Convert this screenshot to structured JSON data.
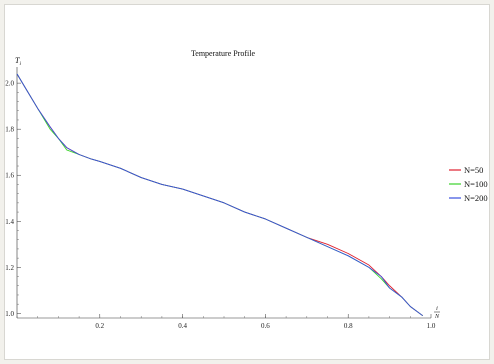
{
  "chart_data": {
    "type": "line",
    "title": "Temperature Profile",
    "ylabel": "T_i",
    "xlabel": "i/N",
    "xlim": [
      0,
      1.0
    ],
    "ylim": [
      0.98,
      2.07
    ],
    "xticks": [
      0.2,
      0.4,
      0.6,
      0.8,
      1.0
    ],
    "xtick_labels": [
      "0.2",
      "0.4",
      "0.6",
      "0.8",
      "1.0"
    ],
    "yticks": [
      1.0,
      1.2,
      1.4,
      1.6,
      1.8,
      2.0
    ],
    "ytick_labels": [
      "1.0",
      "1.2",
      "1.4",
      "1.6",
      "1.8",
      "2.0"
    ],
    "legend_position": "right",
    "x": [
      0.0,
      0.02,
      0.05,
      0.08,
      0.1,
      0.12,
      0.15,
      0.18,
      0.2,
      0.25,
      0.3,
      0.35,
      0.4,
      0.45,
      0.5,
      0.55,
      0.6,
      0.65,
      0.7,
      0.75,
      0.8,
      0.85,
      0.88,
      0.9,
      0.93,
      0.95,
      0.98
    ],
    "series": [
      {
        "name": "N=50",
        "color": "#e0202e",
        "values": [
          2.04,
          1.98,
          1.89,
          1.81,
          1.76,
          1.72,
          1.69,
          1.67,
          1.66,
          1.63,
          1.59,
          1.56,
          1.54,
          1.51,
          1.48,
          1.44,
          1.41,
          1.37,
          1.33,
          1.3,
          1.26,
          1.21,
          1.16,
          1.12,
          1.07,
          1.03,
          0.99
        ]
      },
      {
        "name": "N=100",
        "color": "#3bd12b",
        "values": [
          2.04,
          1.98,
          1.89,
          1.8,
          1.76,
          1.71,
          1.69,
          1.67,
          1.66,
          1.63,
          1.59,
          1.56,
          1.54,
          1.51,
          1.48,
          1.44,
          1.41,
          1.37,
          1.33,
          1.29,
          1.25,
          1.2,
          1.15,
          1.11,
          1.07,
          1.03,
          0.99
        ]
      },
      {
        "name": "N=200",
        "color": "#3a4fe0",
        "values": [
          2.04,
          1.98,
          1.89,
          1.81,
          1.76,
          1.72,
          1.69,
          1.67,
          1.66,
          1.63,
          1.59,
          1.56,
          1.54,
          1.51,
          1.48,
          1.44,
          1.41,
          1.37,
          1.33,
          1.29,
          1.25,
          1.2,
          1.16,
          1.11,
          1.07,
          1.03,
          0.99
        ]
      }
    ]
  }
}
